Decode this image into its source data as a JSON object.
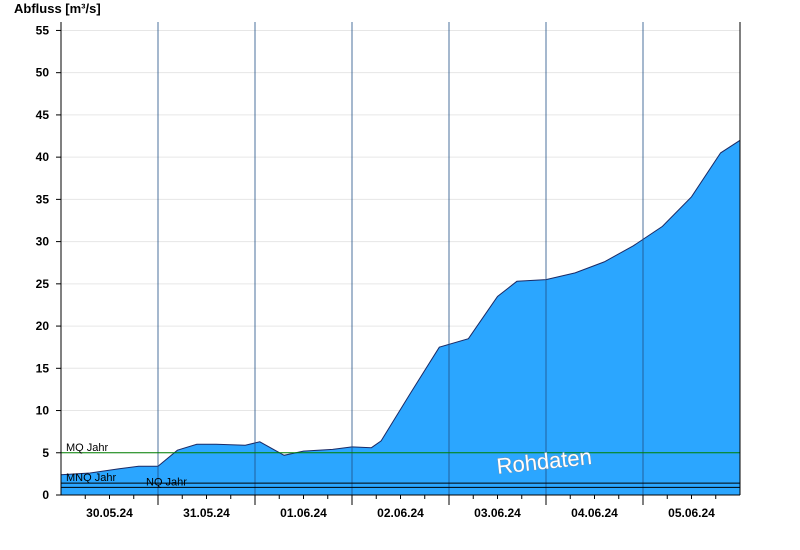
{
  "chart_data": {
    "type": "area",
    "ylabel": "Abfluss [m³/s]",
    "ylim": [
      0,
      56
    ],
    "yticks": [
      0,
      5,
      10,
      15,
      20,
      25,
      30,
      35,
      40,
      45,
      50,
      55
    ],
    "x_unit": "days since 29.05.24 12:00",
    "xlim": [
      0,
      7
    ],
    "xtick_labels": [
      "30.05.24",
      "31.05.24",
      "01.06.24",
      "02.06.24",
      "03.06.24",
      "04.06.24",
      "05.06.24"
    ],
    "grid": "horizontal",
    "fill_color": "#2ba6ff",
    "line_color": "#1a2a66",
    "series": [
      {
        "x": [
          0,
          0.3,
          0.6,
          0.8,
          1.0,
          1.2,
          1.4,
          1.6,
          1.9,
          2.05,
          2.3,
          2.5,
          2.8,
          3.0,
          3.2,
          3.3,
          3.6,
          3.9,
          4.2,
          4.5,
          4.7,
          5.0,
          5.3,
          5.6,
          5.9,
          6.2,
          6.5,
          6.8,
          7.0
        ],
        "y": [
          2.4,
          2.6,
          3.1,
          3.4,
          3.4,
          5.3,
          6.0,
          6.0,
          5.9,
          6.3,
          4.7,
          5.2,
          5.4,
          5.7,
          5.6,
          6.4,
          12.0,
          17.5,
          18.5,
          23.5,
          25.3,
          25.5,
          26.3,
          27.6,
          29.5,
          31.8,
          35.3,
          40.5,
          42.0
        ]
      }
    ],
    "reference_lines": [
      {
        "label": "MQ Jahr",
        "value": 5.0,
        "color": "#008000"
      },
      {
        "label": "MNQ Jahr",
        "value": 1.4,
        "color": "#000000"
      },
      {
        "label": "NQ Jahr",
        "value": 0.9,
        "color": "#000000"
      }
    ],
    "watermark": "Rohdaten"
  }
}
